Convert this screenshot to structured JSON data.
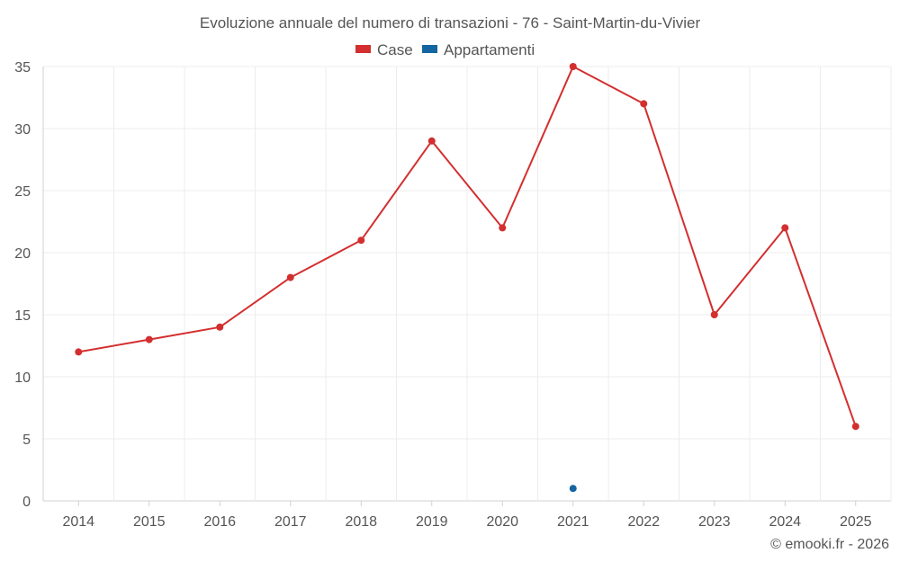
{
  "chart_data": {
    "type": "line",
    "title": "Evoluzione annuale del numero di transazioni - 76 - Saint-Martin-du-Vivier",
    "categories": [
      "2014",
      "2015",
      "2016",
      "2017",
      "2018",
      "2019",
      "2020",
      "2021",
      "2022",
      "2023",
      "2024",
      "2025"
    ],
    "series": [
      {
        "name": "Case",
        "color": "#d32f2f",
        "values": [
          12,
          13,
          14,
          18,
          21,
          29,
          22,
          35,
          32,
          15,
          22,
          6
        ]
      },
      {
        "name": "Appartamenti",
        "color": "#1565a0",
        "values": [
          null,
          null,
          null,
          null,
          null,
          null,
          null,
          1,
          null,
          null,
          null,
          null
        ]
      }
    ],
    "ylim": [
      0,
      35
    ],
    "yticks": [
      0,
      5,
      10,
      15,
      20,
      25,
      30,
      35
    ],
    "xlabel": "",
    "ylabel": "",
    "grid": true,
    "legend_position": "top-center"
  },
  "credit": "© emooki.fr - 2026"
}
